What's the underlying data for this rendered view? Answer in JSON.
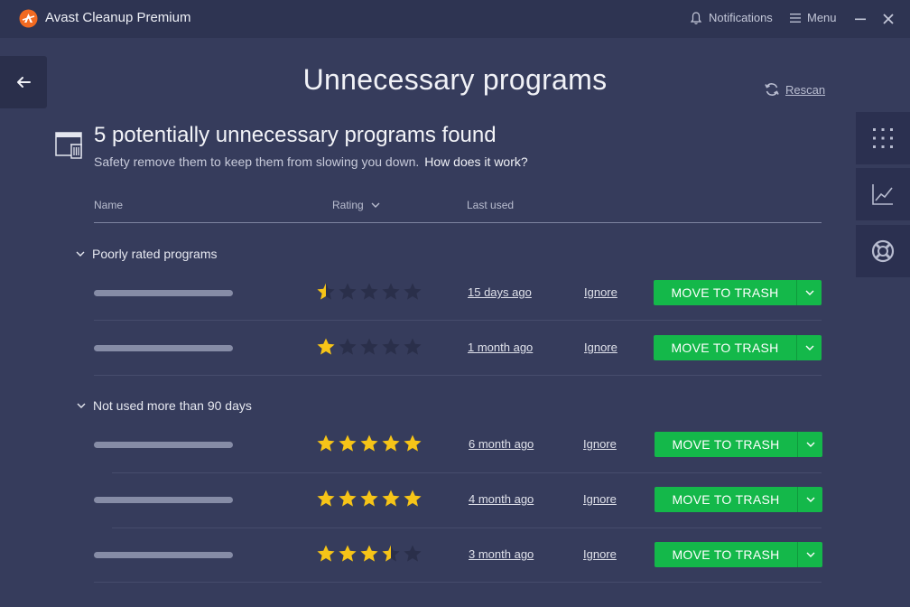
{
  "app": {
    "title": "Avast Cleanup Premium",
    "notifications_label": "Notifications",
    "menu_label": "Menu",
    "accent": "#14b84a"
  },
  "page": {
    "title": "Unnecessary programs",
    "rescan_label": "Rescan"
  },
  "summary": {
    "heading": "5 potentially unnecessary programs found",
    "subtitle": "Safety remove them to keep them from slowing you down.",
    "help_link": "How does it work?"
  },
  "columns": {
    "name": "Name",
    "rating": "Rating",
    "last_used": "Last used"
  },
  "groups": [
    {
      "label": "Poorly rated programs",
      "rows": [
        {
          "rating": 0.5,
          "last_used": "15 days ago",
          "ignore": "Ignore",
          "action": "MOVE TO TRASH"
        },
        {
          "rating": 1,
          "last_used": "1 month ago",
          "ignore": "Ignore",
          "action": "MOVE TO TRASH"
        }
      ]
    },
    {
      "label": "Not used more than 90 days",
      "rows": [
        {
          "rating": 5,
          "last_used": "6 month ago",
          "ignore": "Ignore",
          "action": "MOVE TO TRASH"
        },
        {
          "rating": 5,
          "last_used": "4 month ago",
          "ignore": "Ignore",
          "action": "MOVE TO TRASH"
        },
        {
          "rating": 3.5,
          "last_used": "3 month ago",
          "ignore": "Ignore",
          "action": "MOVE TO TRASH"
        }
      ]
    }
  ],
  "icons": {
    "logo": "avast-logo-icon",
    "notifications": "bell-icon",
    "menu": "hamburger-icon",
    "minimize": "minimize-icon",
    "close": "close-icon",
    "back": "arrow-left-icon",
    "rescan": "refresh-icon",
    "sidebar": [
      "grid-icon",
      "chart-icon",
      "lifebuoy-icon"
    ]
  }
}
